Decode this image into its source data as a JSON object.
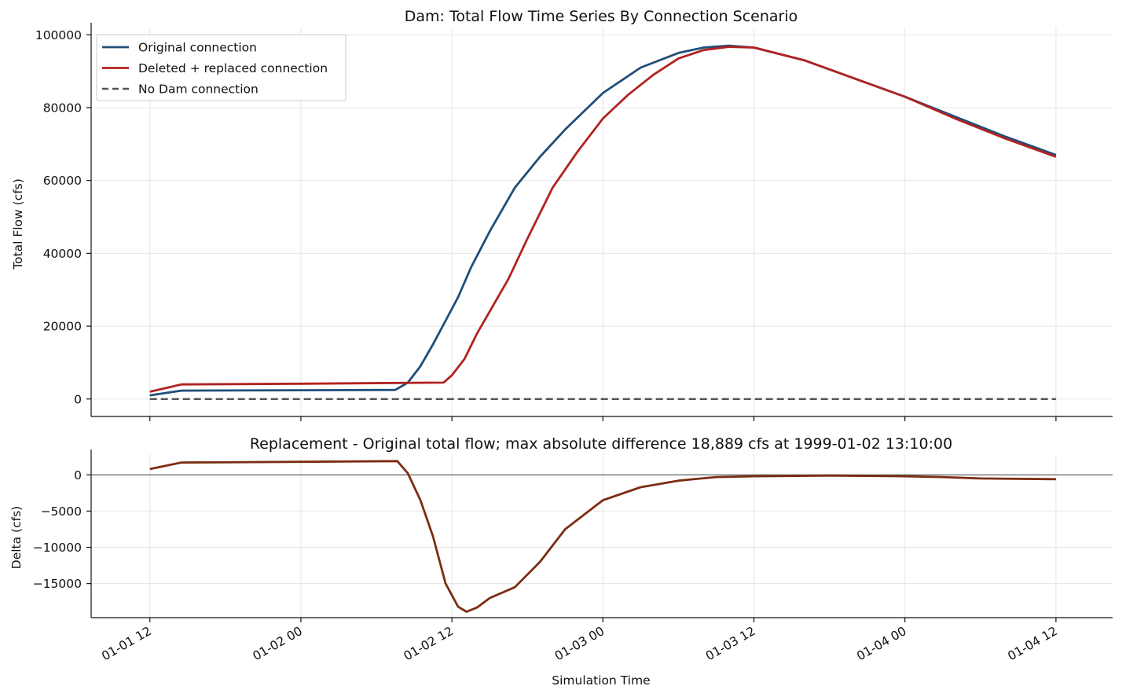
{
  "chart_data": [
    {
      "type": "line",
      "title": "Dam: Total Flow Time Series By Connection Scenario",
      "ylabel": "Total Flow (cfs)",
      "xlabel": "",
      "xlim": [
        "1999-01-01 07:20",
        "1999-01-04 16:30"
      ],
      "ylim": [
        -4800,
        102000
      ],
      "yticks": [
        0,
        20000,
        40000,
        60000,
        80000,
        100000
      ],
      "grid": true,
      "legend": "top-left",
      "series": [
        {
          "name": "Original connection",
          "color": "#1f4e79",
          "style": "solid",
          "points": [
            [
              "1999-01-01 12:00",
              1000
            ],
            [
              "1999-01-01 14:30",
              2300
            ],
            [
              "1999-01-02 00:00",
              2400
            ],
            [
              "1999-01-02 07:30",
              2500
            ],
            [
              "1999-01-02 08:30",
              4500
            ],
            [
              "1999-01-02 09:30",
              9000
            ],
            [
              "1999-01-02 10:30",
              15000
            ],
            [
              "1999-01-02 11:30",
              21500
            ],
            [
              "1999-01-02 12:30",
              28000
            ],
            [
              "1999-01-02 13:30",
              36000
            ],
            [
              "1999-01-02 15:00",
              46000
            ],
            [
              "1999-01-02 17:00",
              58000
            ],
            [
              "1999-01-02 19:00",
              66500
            ],
            [
              "1999-01-02 21:00",
              74000
            ],
            [
              "1999-01-03 00:00",
              84000
            ],
            [
              "1999-01-03 03:00",
              91000
            ],
            [
              "1999-01-03 06:00",
              95000
            ],
            [
              "1999-01-03 08:00",
              96500
            ],
            [
              "1999-01-03 10:00",
              97000
            ],
            [
              "1999-01-03 12:00",
              96500
            ],
            [
              "1999-01-03 16:00",
              93000
            ],
            [
              "1999-01-03 20:00",
              88000
            ],
            [
              "1999-01-04 00:00",
              83000
            ],
            [
              "1999-01-04 04:00",
              77500
            ],
            [
              "1999-01-04 08:00",
              72000
            ],
            [
              "1999-01-04 12:00",
              67000
            ]
          ]
        },
        {
          "name": "Deleted + replaced connection",
          "color": "#b22222",
          "style": "solid",
          "points": [
            [
              "1999-01-01 12:00",
              2000
            ],
            [
              "1999-01-01 14:30",
              4000
            ],
            [
              "1999-01-02 00:00",
              4200
            ],
            [
              "1999-01-02 11:20",
              4500
            ],
            [
              "1999-01-02 12:00",
              6500
            ],
            [
              "1999-01-02 13:00",
              11000
            ],
            [
              "1999-01-02 14:00",
              18000
            ],
            [
              "1999-01-02 16:30",
              33000
            ],
            [
              "1999-01-02 18:00",
              44000
            ],
            [
              "1999-01-02 20:00",
              58000
            ],
            [
              "1999-01-02 22:00",
              68000
            ],
            [
              "1999-01-03 00:00",
              77000
            ],
            [
              "1999-01-03 02:00",
              83500
            ],
            [
              "1999-01-03 04:00",
              89000
            ],
            [
              "1999-01-03 06:00",
              93500
            ],
            [
              "1999-01-03 08:00",
              95800
            ],
            [
              "1999-01-03 10:00",
              96700
            ],
            [
              "1999-01-03 12:00",
              96500
            ],
            [
              "1999-01-03 16:00",
              93000
            ],
            [
              "1999-01-03 20:00",
              88000
            ],
            [
              "1999-01-04 00:00",
              83000
            ],
            [
              "1999-01-04 04:00",
              77000
            ],
            [
              "1999-01-04 08:00",
              71500
            ],
            [
              "1999-01-04 12:00",
              66500
            ]
          ]
        },
        {
          "name": "No Dam connection",
          "color": "#555555",
          "style": "dashed",
          "points": [
            [
              "1999-01-01 12:00",
              0
            ],
            [
              "1999-01-04 12:00",
              0
            ]
          ]
        }
      ]
    },
    {
      "type": "line",
      "title": "Replacement - Original total flow; max absolute difference 18,889 cfs at 1999-01-02 13:10:00",
      "ylabel": "Delta (cfs)",
      "xlabel": "Simulation Time",
      "xlim": [
        "1999-01-01 07:20",
        "1999-01-04 16:30"
      ],
      "ylim": [
        -19700,
        2850
      ],
      "yticks": [
        0,
        -5000,
        -10000,
        -15000
      ],
      "xticks": [
        "01-01 12",
        "01-02 00",
        "01-02 12",
        "01-03 00",
        "01-03 12",
        "01-04 00",
        "01-04 12"
      ],
      "zero_line": true,
      "grid": true,
      "series": [
        {
          "name": "",
          "color": "#7b2d12",
          "style": "solid",
          "points": [
            [
              "1999-01-01 12:00",
              800
            ],
            [
              "1999-01-01 14:30",
              1700
            ],
            [
              "1999-01-02 00:00",
              1800
            ],
            [
              "1999-01-02 07:40",
              1900
            ],
            [
              "1999-01-02 08:30",
              200
            ],
            [
              "1999-01-02 09:30",
              -3500
            ],
            [
              "1999-01-02 10:30",
              -8500
            ],
            [
              "1999-01-02 11:30",
              -15000
            ],
            [
              "1999-01-02 12:30",
              -18200
            ],
            [
              "1999-01-02 13:10",
              -18889
            ],
            [
              "1999-01-02 14:00",
              -18300
            ],
            [
              "1999-01-02 15:00",
              -17000
            ],
            [
              "1999-01-02 17:00",
              -15500
            ],
            [
              "1999-01-02 19:00",
              -12000
            ],
            [
              "1999-01-02 21:00",
              -7500
            ],
            [
              "1999-01-03 00:00",
              -3500
            ],
            [
              "1999-01-03 03:00",
              -1700
            ],
            [
              "1999-01-03 06:00",
              -800
            ],
            [
              "1999-01-03 09:00",
              -300
            ],
            [
              "1999-01-03 12:00",
              -200
            ],
            [
              "1999-01-03 18:00",
              -100
            ],
            [
              "1999-01-04 00:00",
              -200
            ],
            [
              "1999-01-04 03:00",
              -300
            ],
            [
              "1999-01-04 06:00",
              -500
            ],
            [
              "1999-01-04 12:00",
              -600
            ]
          ]
        }
      ]
    }
  ]
}
